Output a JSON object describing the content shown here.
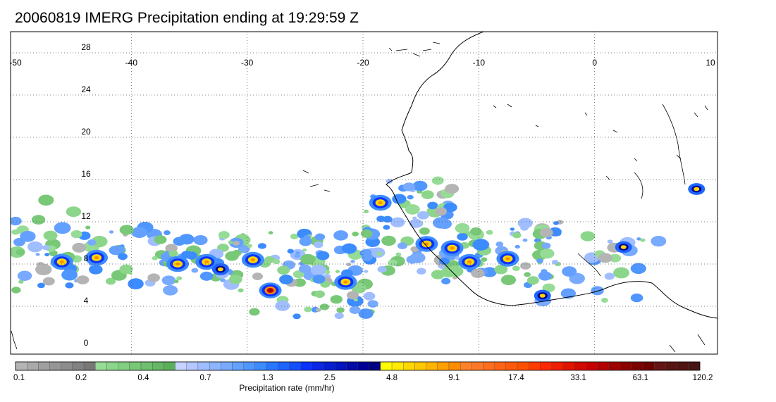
{
  "title": "20060819 IMERG Precipitation ending at 19:29:59 Z",
  "map": {
    "lon_labels": [
      "-50",
      "-40",
      "-30",
      "-20",
      "-10",
      "0",
      "10"
    ],
    "lat_labels": [
      "28",
      "24",
      "20",
      "16",
      "12",
      "8",
      "4",
      "0"
    ],
    "land_outline_color": "#000000",
    "grid_style": "dotted"
  },
  "colorbar": {
    "title": "Precipitation rate (mm/hr)",
    "tick_labels": [
      "0.1",
      "0.2",
      "0.4",
      "0.7",
      "1.3",
      "2.5",
      "4.8",
      "9.1",
      "17.4",
      "33.1",
      "63.1",
      "120.2"
    ],
    "colors": [
      "#b4b4b4",
      "#aaaaaa",
      "#a0a0a0",
      "#969696",
      "#8c8c8c",
      "#828282",
      "#787878",
      "#96dc96",
      "#8cd68c",
      "#82cf82",
      "#78c878",
      "#6ec06e",
      "#64b864",
      "#5ab05a",
      "#c8d2ff",
      "#b4c8ff",
      "#a0beff",
      "#8cb4ff",
      "#78aaff",
      "#64a0ff",
      "#5096ff",
      "#3c8cff",
      "#2878ff",
      "#1e64ff",
      "#1450ff",
      "#0a32ff",
      "#0828e6",
      "#061ed2",
      "#0414be",
      "#020aaa",
      "#000096",
      "#000082",
      "#ffff00",
      "#ffeb00",
      "#ffd700",
      "#ffc800",
      "#ffb400",
      "#ffa000",
      "#ff8c00",
      "#ff8228",
      "#ff7828",
      "#ff6e1e",
      "#ff6414",
      "#ff5a0a",
      "#ff5000",
      "#ff3c00",
      "#ff2800",
      "#f01e00",
      "#e11400",
      "#d20a00",
      "#c80000",
      "#b40000",
      "#a00000",
      "#8c0000",
      "#7d0000",
      "#6e0000",
      "#641414",
      "#5a1414",
      "#501414",
      "#461414"
    ]
  },
  "precip_cells": [
    {
      "lon": -46,
      "lat": 8.2,
      "level": "high"
    },
    {
      "lon": -43,
      "lat": 8.6,
      "level": "high"
    },
    {
      "lon": -36,
      "lat": 8.0,
      "level": "high"
    },
    {
      "lon": -33.5,
      "lat": 8.2,
      "level": "high"
    },
    {
      "lon": -32.3,
      "lat": 7.5,
      "level": "med"
    },
    {
      "lon": -28,
      "lat": 5.5,
      "level": "extreme"
    },
    {
      "lon": -29.5,
      "lat": 8.4,
      "level": "high"
    },
    {
      "lon": -21.5,
      "lat": 6.3,
      "level": "high"
    },
    {
      "lon": -18.5,
      "lat": 13.8,
      "level": "high"
    },
    {
      "lon": -14.5,
      "lat": 9.9,
      "level": "high"
    },
    {
      "lon": -12.3,
      "lat": 9.5,
      "level": "high"
    },
    {
      "lon": -10.8,
      "lat": 8.2,
      "level": "high"
    },
    {
      "lon": -7.5,
      "lat": 8.5,
      "level": "high"
    },
    {
      "lon": -4.5,
      "lat": 5.0,
      "level": "med"
    },
    {
      "lon": 2.5,
      "lat": 9.6,
      "level": "med"
    },
    {
      "lon": 8.8,
      "lat": 15.1,
      "level": "med"
    }
  ]
}
